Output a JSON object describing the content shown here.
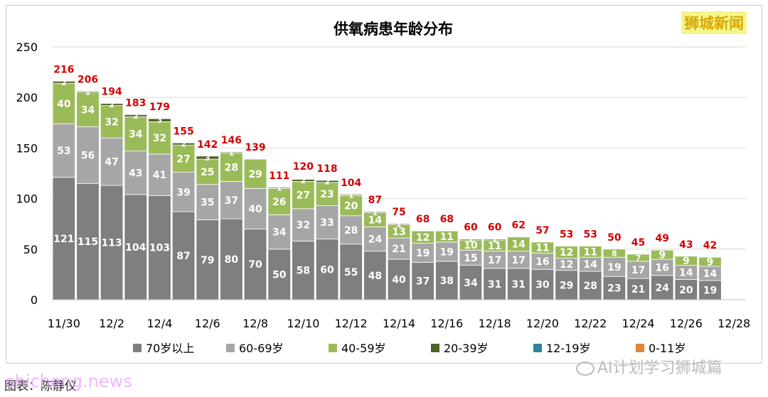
{
  "chart_data": {
    "type": "bar",
    "stacked": true,
    "title": "供氧病患年龄分布",
    "xlabel": "",
    "ylabel": "",
    "ylim": [
      0,
      250
    ],
    "yticks": [
      0,
      50,
      100,
      150,
      200,
      250
    ],
    "grid": true,
    "legend_position": "bottom",
    "categories": [
      "11/30",
      "12/1",
      "12/2",
      "12/3",
      "12/4",
      "12/5",
      "12/6",
      "12/7",
      "12/8",
      "12/9",
      "12/10",
      "12/11",
      "12/12",
      "12/13",
      "12/14",
      "12/15",
      "12/16",
      "12/17",
      "12/18",
      "12/19",
      "12/20",
      "12/21",
      "12/22",
      "12/23",
      "12/24",
      "12/25",
      "12/26",
      "12/27",
      "12/28"
    ],
    "x_tick_labels": [
      "11/30",
      "12/2",
      "12/4",
      "12/6",
      "12/8",
      "12/10",
      "12/12",
      "12/14",
      "12/16",
      "12/18",
      "12/20",
      "12/22",
      "12/24",
      "12/26",
      "12/28"
    ],
    "series": [
      {
        "name": "70岁以上",
        "color": "#7f7f7f",
        "label_color": "#ffffff",
        "values": [
          121,
          115,
          113,
          104,
          103,
          87,
          79,
          80,
          70,
          50,
          58,
          60,
          55,
          48,
          40,
          37,
          38,
          34,
          31,
          31,
          30,
          29,
          28,
          23,
          21,
          24,
          20,
          19,
          null
        ]
      },
      {
        "name": "60-69岁",
        "color": "#a6a6a6",
        "label_color": "#ffffff",
        "values": [
          53,
          56,
          47,
          43,
          41,
          39,
          35,
          37,
          40,
          34,
          32,
          33,
          28,
          24,
          21,
          19,
          19,
          15,
          17,
          17,
          16,
          12,
          14,
          19,
          17,
          16,
          14,
          14,
          null
        ]
      },
      {
        "name": "40-59岁",
        "color": "#9bbb59",
        "label_color": "#ffffff",
        "values": [
          40,
          34,
          32,
          34,
          32,
          27,
          25,
          28,
          29,
          26,
          27,
          23,
          20,
          14,
          13,
          12,
          11,
          10,
          11,
          14,
          11,
          12,
          11,
          8,
          7,
          9,
          9,
          9,
          null
        ]
      },
      {
        "name": "20-39岁",
        "color": "#4f6228",
        "label_color": "#ffffff",
        "values": [
          2,
          1,
          2,
          2,
          3,
          2,
          3,
          1,
          0,
          1,
          2,
          2,
          1,
          1,
          1,
          0,
          0,
          1,
          1,
          0,
          0,
          0,
          0,
          0,
          0,
          0,
          0,
          0,
          null
        ]
      },
      {
        "name": "12-19岁",
        "color": "#31849b",
        "label_color": "#ffffff",
        "values": [
          0,
          0,
          0,
          0,
          0,
          0,
          0,
          0,
          0,
          0,
          0,
          0,
          0,
          0,
          0,
          0,
          0,
          0,
          0,
          0,
          0,
          0,
          0,
          0,
          0,
          0,
          0,
          0,
          null
        ]
      },
      {
        "name": "0-11岁",
        "color": "#e0843a",
        "label_color": "#ffffff",
        "values": [
          0,
          0,
          0,
          0,
          0,
          0,
          0,
          0,
          0,
          0,
          0,
          0,
          0,
          0,
          0,
          0,
          0,
          0,
          0,
          0,
          0,
          0,
          0,
          0,
          0,
          0,
          0,
          0,
          null
        ]
      }
    ],
    "totals": [
      216,
      206,
      194,
      183,
      179,
      155,
      142,
      146,
      139,
      111,
      120,
      118,
      104,
      87,
      75,
      68,
      68,
      60,
      60,
      62,
      57,
      53,
      53,
      50,
      45,
      49,
      43,
      42,
      null
    ],
    "total_label_color": "#d40000"
  },
  "logo_text": "狮城新闻",
  "caption": "图表：陈静仪",
  "watermark_left": "shicheng.news",
  "watermark_right": "AI计划学习狮城篇"
}
